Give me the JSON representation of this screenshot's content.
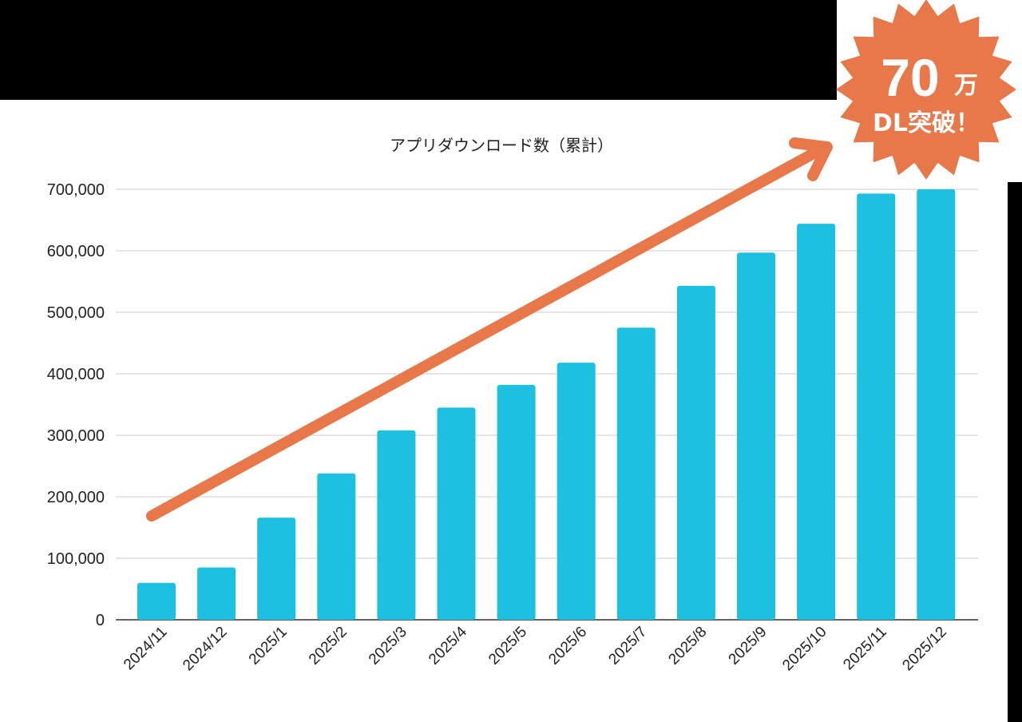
{
  "chart_data": {
    "type": "bar",
    "title": "アプリダウンロード数（累計）",
    "xlabel": "",
    "ylabel": "",
    "ylim": [
      0,
      700000
    ],
    "yticks": [
      0,
      100000,
      200000,
      300000,
      400000,
      500000,
      600000,
      700000
    ],
    "ytick_labels": [
      "0",
      "100,000",
      "200,000",
      "300,000",
      "400,000",
      "500,000",
      "600,000",
      "700,000"
    ],
    "categories": [
      "2024/11",
      "2024/12",
      "2025/1",
      "2025/2",
      "2025/3",
      "2025/4",
      "2025/5",
      "2025/6",
      "2025/7",
      "2025/8",
      "2025/9",
      "2025/10",
      "2025/11",
      "2025/12"
    ],
    "values": [
      60000,
      85000,
      166000,
      238000,
      308000,
      345000,
      382000,
      418000,
      475000,
      543000,
      597000,
      644000,
      693000,
      700000
    ],
    "grid": true,
    "legend": "none",
    "colors": {
      "bar": "#1EC0E2",
      "arrow": "#E8774A",
      "badge": "#E8774A",
      "grid": "#cccccc"
    }
  },
  "badge": {
    "number": "70",
    "unit": "万",
    "text": "DL突破！"
  }
}
